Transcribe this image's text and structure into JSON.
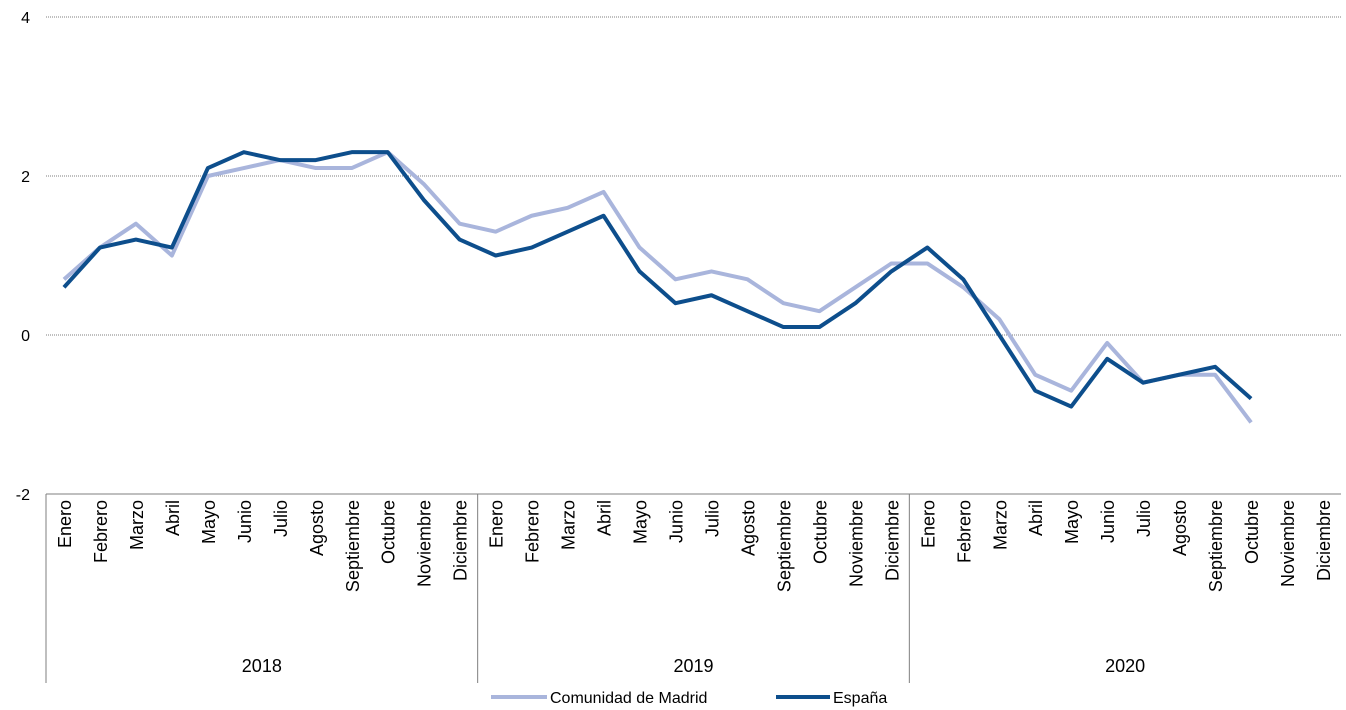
{
  "chart_data": {
    "type": "line",
    "title": "",
    "xlabel": "",
    "ylabel": "",
    "ylim": [
      -2,
      4
    ],
    "yticks": [
      "-2",
      "0",
      "2",
      "4"
    ],
    "grid": "horizontal, dotted",
    "legend_position": "bottom",
    "years": [
      {
        "label": "2018",
        "months": [
          "Enero",
          "Febrero",
          "Marzo",
          "Abril",
          "Mayo",
          "Junio",
          "Julio",
          "Agosto",
          "Septiembre",
          "Octubre",
          "Noviembre",
          "Diciembre"
        ]
      },
      {
        "label": "2019",
        "months": [
          "Enero",
          "Febrero",
          "Marzo",
          "Abril",
          "Mayo",
          "Junio",
          "Julio",
          "Agosto",
          "Septiembre",
          "Octubre",
          "Noviembre",
          "Diciembre"
        ]
      },
      {
        "label": "2020",
        "months": [
          "Enero",
          "Febrero",
          "Marzo",
          "Abril",
          "Mayo",
          "Junio",
          "Julio",
          "Agosto",
          "Septiembre",
          "Octubre",
          "Noviembre",
          "Diciembre"
        ]
      }
    ],
    "series": [
      {
        "name": "Comunidad de Madrid",
        "color": "#a9b5dc",
        "values": [
          0.7,
          1.1,
          1.4,
          1.0,
          2.0,
          2.1,
          2.2,
          2.1,
          2.1,
          2.3,
          1.9,
          1.4,
          1.3,
          1.5,
          1.6,
          1.8,
          1.1,
          0.7,
          0.8,
          0.7,
          0.4,
          0.3,
          0.6,
          0.9,
          0.9,
          0.6,
          0.2,
          -0.5,
          -0.7,
          -0.1,
          -0.6,
          -0.5,
          -0.5,
          -1.1,
          null,
          null
        ]
      },
      {
        "name": "España",
        "color": "#0d4e8c",
        "values": [
          0.6,
          1.1,
          1.2,
          1.1,
          2.1,
          2.3,
          2.2,
          2.2,
          2.3,
          2.3,
          1.7,
          1.2,
          1.0,
          1.1,
          1.3,
          1.5,
          0.8,
          0.4,
          0.5,
          0.3,
          0.1,
          0.1,
          0.4,
          0.8,
          1.1,
          0.7,
          0.0,
          -0.7,
          -0.9,
          -0.3,
          -0.6,
          -0.5,
          -0.4,
          -0.8,
          null,
          null
        ]
      }
    ]
  }
}
